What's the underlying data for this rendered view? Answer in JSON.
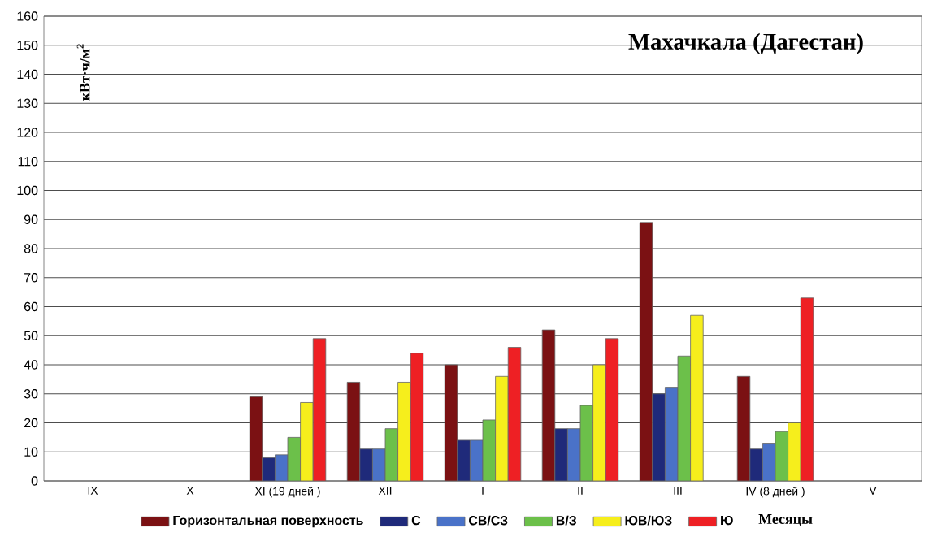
{
  "chart_data": {
    "type": "bar",
    "title": "Махачкала (Дагестан)",
    "xlabel": "Месяцы",
    "ylabel": "кВт·ч/м$^{2}$",
    "categories": [
      "IX",
      "X",
      "XI (19 дней )",
      "XII",
      "I",
      "II",
      "III",
      "IV (8 дней )",
      "V"
    ],
    "series": [
      {
        "name": "Горизонтальная поверхность",
        "color": "#7b1113",
        "values": [
          null,
          null,
          29,
          34,
          40,
          52,
          89,
          36,
          null
        ]
      },
      {
        "name": "С",
        "color": "#1f2a7a",
        "values": [
          null,
          null,
          8,
          11,
          14,
          18,
          30,
          11,
          null
        ]
      },
      {
        "name": "СВ/СЗ",
        "color": "#4a72c8",
        "values": [
          null,
          null,
          9,
          11,
          14,
          18,
          32,
          13,
          null
        ]
      },
      {
        "name": "В/З",
        "color": "#6cc04a",
        "values": [
          null,
          null,
          15,
          18,
          21,
          26,
          43,
          17,
          null
        ]
      },
      {
        "name": "ЮВ/ЮЗ",
        "color": "#f6ee1c",
        "values": [
          null,
          null,
          27,
          34,
          36,
          40,
          57,
          20,
          null
        ]
      },
      {
        "name": "Ю",
        "color": "#ee2024",
        "values": [
          null,
          null,
          49,
          44,
          46,
          49,
          null,
          63,
          null
        ]
      }
    ],
    "ylim": [
      0,
      160
    ],
    "yticks": [
      0,
      10,
      20,
      30,
      40,
      50,
      60,
      70,
      80,
      90,
      100,
      110,
      120,
      130,
      140,
      150,
      160
    ],
    "grid": "y",
    "legend": "bottom"
  }
}
